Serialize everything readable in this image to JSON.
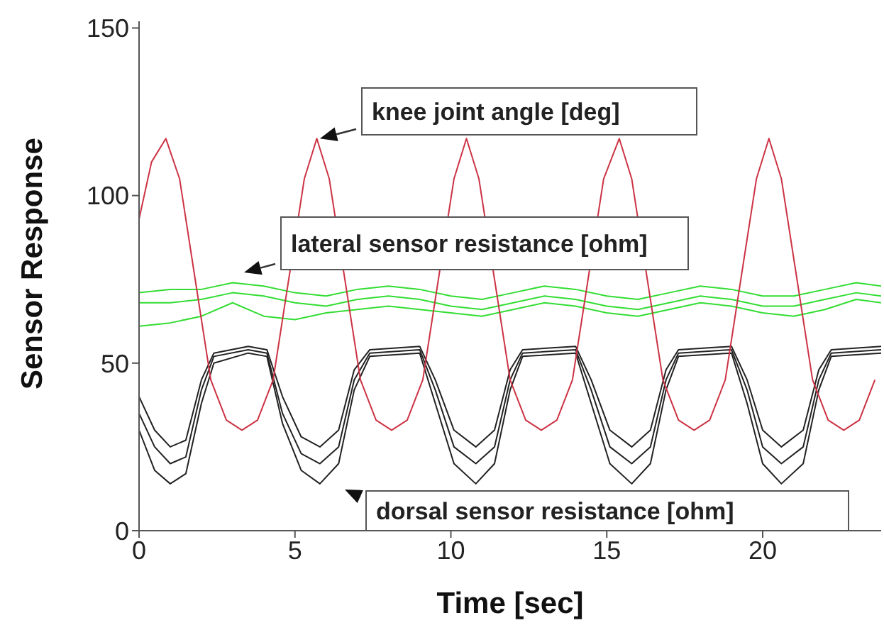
{
  "chart_data": {
    "type": "line",
    "xlabel": "Time [sec]",
    "ylabel": "Sensor Response",
    "xlim": [
      0,
      23.8
    ],
    "ylim": [
      0,
      152
    ],
    "xticks": [
      0,
      5,
      10,
      15,
      20
    ],
    "yticks": [
      0,
      50,
      100,
      150
    ],
    "series": [
      {
        "color": "#33dd33",
        "x": [
          0,
          1,
          2,
          3,
          4,
          5,
          6,
          7,
          8,
          9,
          10,
          11,
          12,
          13,
          14,
          15,
          16,
          17,
          18,
          19,
          20,
          21,
          22,
          23,
          23.8
        ],
        "values": [
          71,
          72,
          72,
          74,
          73,
          71,
          70,
          72,
          73,
          72,
          70,
          69,
          71,
          73,
          72,
          70,
          69,
          71,
          73,
          72,
          70,
          70,
          72,
          74,
          73
        ]
      },
      {
        "color": "#33dd33",
        "x": [
          0,
          1,
          2,
          3,
          4,
          5,
          6,
          7,
          8,
          9,
          10,
          11,
          12,
          13,
          14,
          15,
          16,
          17,
          18,
          19,
          20,
          21,
          22,
          23,
          23.8
        ],
        "values": [
          68,
          68,
          69,
          71,
          70,
          68,
          67,
          69,
          70,
          69,
          67,
          66,
          68,
          70,
          69,
          67,
          66,
          68,
          70,
          69,
          67,
          67,
          69,
          71,
          70
        ]
      },
      {
        "color": "#33dd33",
        "x": [
          0,
          1,
          2,
          3,
          4,
          5,
          6,
          7,
          8,
          9,
          10,
          11,
          12,
          13,
          14,
          15,
          16,
          17,
          18,
          19,
          20,
          21,
          22,
          23,
          23.8
        ],
        "values": [
          61,
          62,
          64,
          68,
          64,
          63,
          65,
          66,
          67,
          66,
          65,
          64,
          66,
          68,
          67,
          65,
          64,
          66,
          68,
          67,
          65,
          64,
          66,
          69,
          68
        ]
      },
      {
        "color": "#222222",
        "x": [
          0,
          0.5,
          1,
          1.5,
          2,
          2.4,
          3.5,
          4.1,
          4.6,
          5.2,
          5.8,
          6.4,
          6.9,
          7.4,
          9,
          9.5,
          10.1,
          10.8,
          11.4,
          11.9,
          12.3,
          14,
          14.5,
          15.1,
          15.8,
          16.4,
          16.9,
          17.3,
          19,
          19.5,
          20,
          20.6,
          21.3,
          21.8,
          22.2,
          23.8
        ],
        "values": [
          40,
          30,
          25,
          27,
          45,
          53,
          55,
          54,
          40,
          28,
          25,
          30,
          48,
          54,
          55,
          45,
          30,
          25,
          30,
          48,
          54,
          55,
          45,
          30,
          25,
          30,
          48,
          54,
          55,
          45,
          30,
          25,
          30,
          48,
          54,
          55
        ]
      },
      {
        "color": "#222222",
        "x": [
          0,
          0.5,
          1,
          1.5,
          2,
          2.4,
          3.5,
          4.1,
          4.6,
          5.2,
          5.8,
          6.4,
          6.9,
          7.4,
          9,
          9.5,
          10.1,
          10.8,
          11.4,
          11.9,
          12.3,
          14,
          14.5,
          15.1,
          15.8,
          16.4,
          16.9,
          17.3,
          19,
          19.5,
          20,
          20.6,
          21.3,
          21.8,
          22.2,
          23.8
        ],
        "values": [
          35,
          25,
          20,
          22,
          42,
          52,
          54,
          53,
          35,
          23,
          20,
          25,
          45,
          53,
          54,
          42,
          25,
          20,
          25,
          45,
          53,
          54,
          42,
          25,
          20,
          25,
          45,
          53,
          54,
          42,
          25,
          20,
          25,
          45,
          53,
          54
        ]
      },
      {
        "color": "#222222",
        "x": [
          0,
          0.5,
          1,
          1.5,
          2,
          2.4,
          3.5,
          4.1,
          4.6,
          5.2,
          5.8,
          6.4,
          6.9,
          7.4,
          9,
          9.5,
          10.1,
          10.8,
          11.4,
          11.9,
          12.3,
          14,
          14.5,
          15.1,
          15.8,
          16.4,
          16.9,
          17.3,
          19,
          19.5,
          20,
          20.6,
          21.3,
          21.8,
          22.2,
          23.8
        ],
        "values": [
          30,
          18,
          14,
          17,
          38,
          50,
          53,
          52,
          32,
          18,
          14,
          20,
          42,
          52,
          53,
          38,
          20,
          14,
          20,
          42,
          52,
          53,
          38,
          20,
          14,
          20,
          42,
          52,
          53,
          38,
          20,
          14,
          20,
          42,
          52,
          53
        ]
      },
      {
        "color": "#cc3344",
        "x": [
          0,
          0.4,
          0.86,
          1.3,
          1.8,
          2.3,
          2.8,
          3.3,
          3.8,
          4.3,
          4.8,
          5.3,
          5.7,
          6.1,
          6.6,
          7.1,
          7.6,
          8.1,
          8.6,
          9.1,
          9.6,
          10.1,
          10.5,
          10.9,
          11.4,
          11.9,
          12.4,
          12.9,
          13.4,
          13.9,
          14.4,
          14.9,
          15.4,
          15.8,
          16.3,
          16.8,
          17.3,
          17.8,
          18.3,
          18.8,
          19.3,
          19.8,
          20.2,
          20.6,
          21.1,
          21.6,
          22.1,
          22.6,
          23.1,
          23.6
        ],
        "values": [
          93,
          110,
          117,
          105,
          75,
          45,
          33,
          30,
          33,
          45,
          75,
          105,
          117,
          105,
          75,
          45,
          33,
          30,
          33,
          45,
          75,
          105,
          117,
          105,
          75,
          45,
          33,
          30,
          33,
          45,
          75,
          105,
          117,
          105,
          75,
          45,
          33,
          30,
          33,
          45,
          75,
          105,
          117,
          105,
          75,
          45,
          33,
          30,
          33,
          45
        ]
      }
    ],
    "annotations": [
      {
        "text": "knee joint angle [deg]",
        "x": 5.8,
        "y": 117
      },
      "lateral sensor resistance [ohm]",
      "dorsal sensor resistance [ohm]"
    ]
  }
}
